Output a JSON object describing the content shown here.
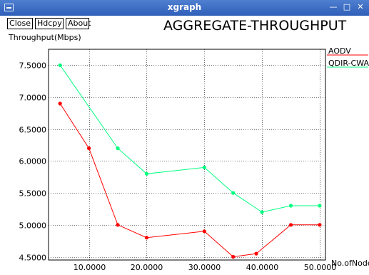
{
  "window": {
    "title": "xgraph"
  },
  "toolbar": {
    "close_label": "Close",
    "hdcpy_label": "Hdcpy",
    "about_label": "About"
  },
  "colors": {
    "titlebar": "#3a6cc4",
    "aodv": "#ff0000",
    "qdir": "#00ff7f",
    "grid": "#000000"
  },
  "chart_data": {
    "type": "line",
    "title": "AGGREGATE-THROUGHPUT",
    "xlabel": "No.ofNode",
    "ylabel": "Throughput(Mbps)",
    "xlim": [
      3,
      51
    ],
    "ylim": [
      4.45,
      7.75
    ],
    "x_ticks": [
      10,
      20,
      30,
      40,
      50
    ],
    "x_tick_labels": [
      "10.0000",
      "20.0000",
      "30.0000",
      "40.0000",
      "50.0000"
    ],
    "y_ticks": [
      4.5,
      5.0,
      5.5,
      6.0,
      6.5,
      7.0,
      7.5
    ],
    "y_tick_labels": [
      "4.5000",
      "5.0000",
      "5.5000",
      "6.0000",
      "6.5000",
      "7.0000",
      "7.5000"
    ],
    "grid": true,
    "legend_position": "top-right",
    "series": [
      {
        "name": "AODV",
        "color": "#ff0000",
        "x": [
          5,
          10,
          15,
          20,
          30,
          35,
          39,
          45,
          50
        ],
        "y": [
          6.9,
          6.2,
          5.0,
          4.8,
          4.9,
          4.5,
          4.55,
          5.0,
          5.0
        ]
      },
      {
        "name": "QDIR-CWA",
        "color": "#00ff7f",
        "x": [
          5,
          15,
          20,
          30,
          35,
          40,
          45,
          50
        ],
        "y": [
          7.5,
          6.2,
          5.8,
          5.9,
          5.5,
          5.2,
          5.3,
          5.3
        ]
      }
    ]
  }
}
